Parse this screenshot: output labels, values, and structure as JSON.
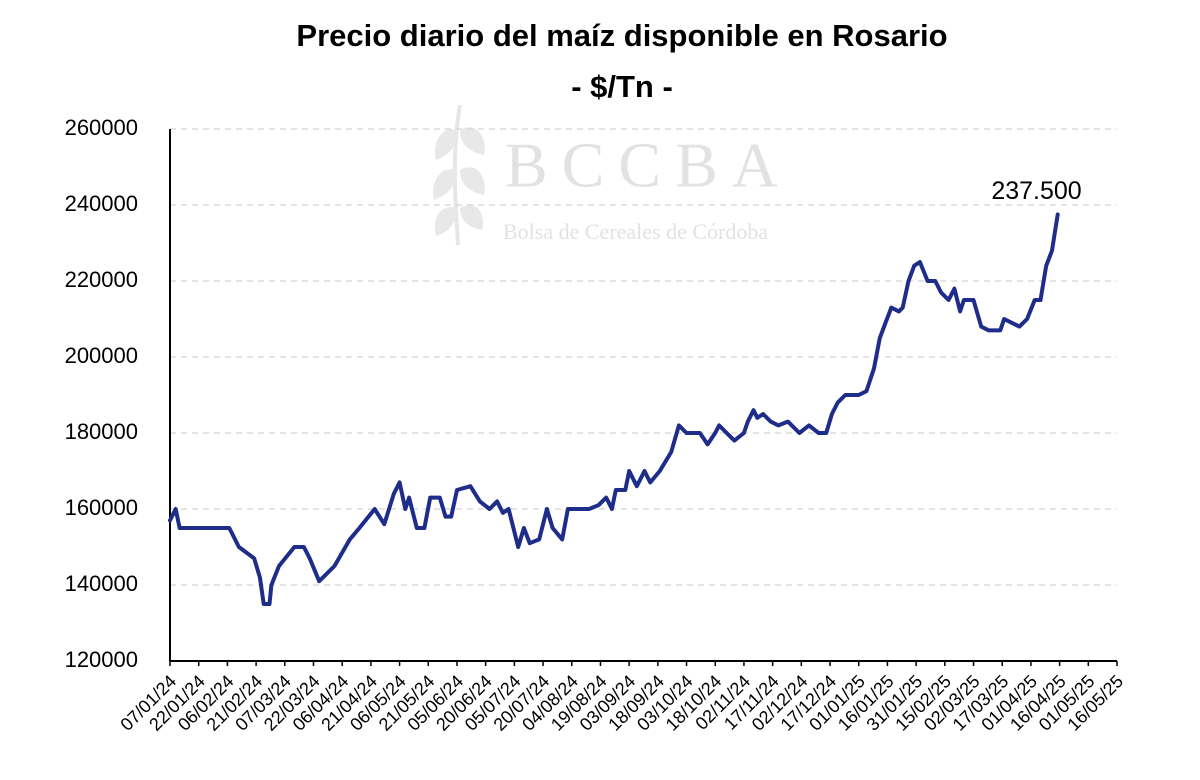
{
  "chart_data": {
    "type": "line",
    "title": "Precio diario del maíz disponible en Rosario",
    "subtitle": "- $/Tn -",
    "watermark": {
      "title": "BCCBA",
      "subtitle": "Bolsa de Cereales de Córdoba"
    },
    "color": "#1f2d8a",
    "grid": true,
    "ylim": [
      120000,
      260000
    ],
    "yticks": [
      120000,
      140000,
      160000,
      180000,
      200000,
      220000,
      240000,
      260000
    ],
    "xlim": [
      "07/01/24",
      "16/05/25"
    ],
    "xticks": [
      "07/01/24",
      "22/01/24",
      "06/02/24",
      "21/02/24",
      "07/03/24",
      "22/03/24",
      "06/04/24",
      "21/04/24",
      "06/05/24",
      "21/05/24",
      "05/06/24",
      "20/06/24",
      "05/07/24",
      "20/07/24",
      "04/08/24",
      "19/08/24",
      "03/09/24",
      "18/09/24",
      "03/10/24",
      "18/10/24",
      "02/11/24",
      "17/11/24",
      "02/12/24",
      "17/12/24",
      "01/01/25",
      "16/01/25",
      "31/01/25",
      "15/02/25",
      "02/03/25",
      "17/03/25",
      "01/04/25",
      "16/04/25",
      "01/05/25",
      "16/05/25"
    ],
    "x": [
      "07/01/24",
      "10/01/24",
      "12/01/24",
      "07/02/24",
      "12/02/24",
      "20/02/24",
      "23/02/24",
      "25/02/24",
      "28/02/24",
      "29/02/24",
      "04/03/24",
      "12/03/24",
      "17/03/24",
      "20/03/24",
      "25/03/24",
      "02/04/24",
      "10/04/24",
      "15/04/24",
      "23/04/24",
      "28/04/24",
      "03/05/24",
      "06/05/24",
      "09/05/24",
      "11/05/24",
      "15/05/24",
      "19/05/24",
      "22/05/24",
      "27/05/24",
      "30/05/24",
      "02/06/24",
      "05/06/24",
      "12/06/24",
      "17/06/24",
      "22/06/24",
      "26/06/24",
      "29/06/24",
      "02/07/24",
      "07/07/24",
      "10/07/24",
      "13/07/24",
      "18/07/24",
      "22/07/24",
      "25/07/24",
      "30/07/24",
      "02/08/24",
      "13/08/24",
      "18/08/24",
      "22/08/24",
      "25/08/24",
      "27/08/24",
      "01/09/24",
      "03/09/24",
      "07/09/24",
      "11/09/24",
      "14/09/24",
      "19/09/24",
      "25/09/24",
      "29/09/24",
      "03/10/24",
      "10/10/24",
      "14/10/24",
      "18/10/24",
      "20/10/24",
      "24/10/24",
      "28/10/24",
      "02/11/24",
      "04/11/24",
      "07/11/24",
      "09/11/24",
      "12/11/24",
      "16/11/24",
      "20/11/24",
      "25/11/24",
      "01/12/24",
      "06/12/24",
      "11/12/24",
      "15/12/24",
      "18/12/24",
      "21/12/24",
      "25/12/24",
      "01/01/25",
      "05/01/25",
      "09/01/25",
      "12/01/25",
      "15/01/25",
      "18/01/25",
      "22/01/25",
      "24/01/25",
      "27/01/25",
      "30/01/25",
      "02/02/25",
      "06/02/25",
      "10/02/25",
      "13/02/25",
      "17/02/25",
      "20/02/25",
      "23/02/25",
      "25/02/25",
      "02/03/25",
      "06/03/25",
      "10/03/25",
      "16/03/25",
      "18/03/25",
      "22/03/25",
      "26/03/25",
      "30/03/25",
      "03/04/25",
      "06/04/25",
      "09/04/25",
      "12/04/25",
      "15/04/25"
    ],
    "values": [
      157000,
      160000,
      155000,
      155000,
      150000,
      147000,
      142000,
      135000,
      135000,
      140000,
      145000,
      150000,
      150000,
      147000,
      141000,
      145000,
      152000,
      155000,
      160000,
      156000,
      164000,
      167000,
      160000,
      163000,
      155000,
      155000,
      163000,
      163000,
      158000,
      158000,
      165000,
      166000,
      162000,
      160000,
      162000,
      159000,
      160000,
      150000,
      155000,
      151000,
      152000,
      160000,
      155000,
      152000,
      160000,
      160000,
      161000,
      163000,
      160000,
      165000,
      165000,
      170000,
      166000,
      170000,
      167000,
      170000,
      175000,
      182000,
      180000,
      180000,
      177000,
      180000,
      182000,
      180000,
      178000,
      180000,
      183000,
      186000,
      184000,
      185000,
      183000,
      182000,
      183000,
      180000,
      182000,
      180000,
      180000,
      185000,
      188000,
      190000,
      190000,
      191000,
      197000,
      205000,
      209000,
      213000,
      212000,
      213000,
      220000,
      224000,
      225000,
      220000,
      220000,
      217000,
      215000,
      218000,
      212000,
      215000,
      215000,
      208000,
      207000,
      207000,
      210000,
      209000,
      208000,
      210000,
      215000,
      215000,
      224000,
      228000,
      237500
    ],
    "value_labels": [
      null,
      null,
      null,
      null,
      null,
      null,
      null,
      null,
      null,
      null,
      null,
      null,
      null,
      null,
      null,
      null,
      null,
      null,
      null,
      null,
      null,
      null,
      null,
      null,
      null,
      null,
      null,
      null,
      null,
      null,
      null,
      null,
      null,
      null,
      null,
      null,
      null,
      null,
      null,
      null,
      null,
      null,
      null,
      null,
      null,
      null,
      null,
      null,
      null,
      null,
      null,
      null,
      null,
      null,
      null,
      null,
      null,
      null,
      null,
      null,
      null,
      null,
      null,
      null,
      null,
      null,
      null,
      null,
      null,
      null,
      null,
      null,
      null,
      null,
      null,
      null,
      null,
      null,
      null,
      null,
      null,
      null,
      null,
      null,
      null,
      null,
      null,
      null,
      null,
      null,
      null,
      null,
      null,
      null,
      null,
      null,
      null,
      null,
      null,
      null,
      null,
      null,
      null,
      null,
      null,
      null,
      null,
      null,
      null,
      null,
      "237.500"
    ]
  }
}
